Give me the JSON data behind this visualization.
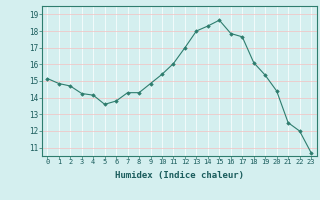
{
  "x": [
    0,
    1,
    2,
    3,
    4,
    5,
    6,
    7,
    8,
    9,
    10,
    11,
    12,
    13,
    14,
    15,
    16,
    17,
    18,
    19,
    20,
    21,
    22,
    23
  ],
  "y": [
    15.15,
    14.85,
    14.7,
    14.25,
    14.15,
    13.6,
    13.8,
    14.3,
    14.3,
    14.85,
    15.4,
    16.05,
    17.0,
    18.0,
    18.3,
    18.65,
    17.85,
    17.65,
    16.1,
    15.35,
    14.4,
    12.5,
    12.0,
    10.7
  ],
  "xlim": [
    -0.5,
    23.5
  ],
  "ylim": [
    10.5,
    19.5
  ],
  "yticks": [
    11,
    12,
    13,
    14,
    15,
    16,
    17,
    18,
    19
  ],
  "xticks": [
    0,
    1,
    2,
    3,
    4,
    5,
    6,
    7,
    8,
    9,
    10,
    11,
    12,
    13,
    14,
    15,
    16,
    17,
    18,
    19,
    20,
    21,
    22,
    23
  ],
  "xlabel": "Humidex (Indice chaleur)",
  "line_color": "#2e7d6e",
  "marker_color": "#2e7d6e",
  "bg_color": "#d4efef",
  "grid_v_color": "#ffffff",
  "grid_h_color": "#f5c0c0",
  "spine_color": "#2e7d6e"
}
